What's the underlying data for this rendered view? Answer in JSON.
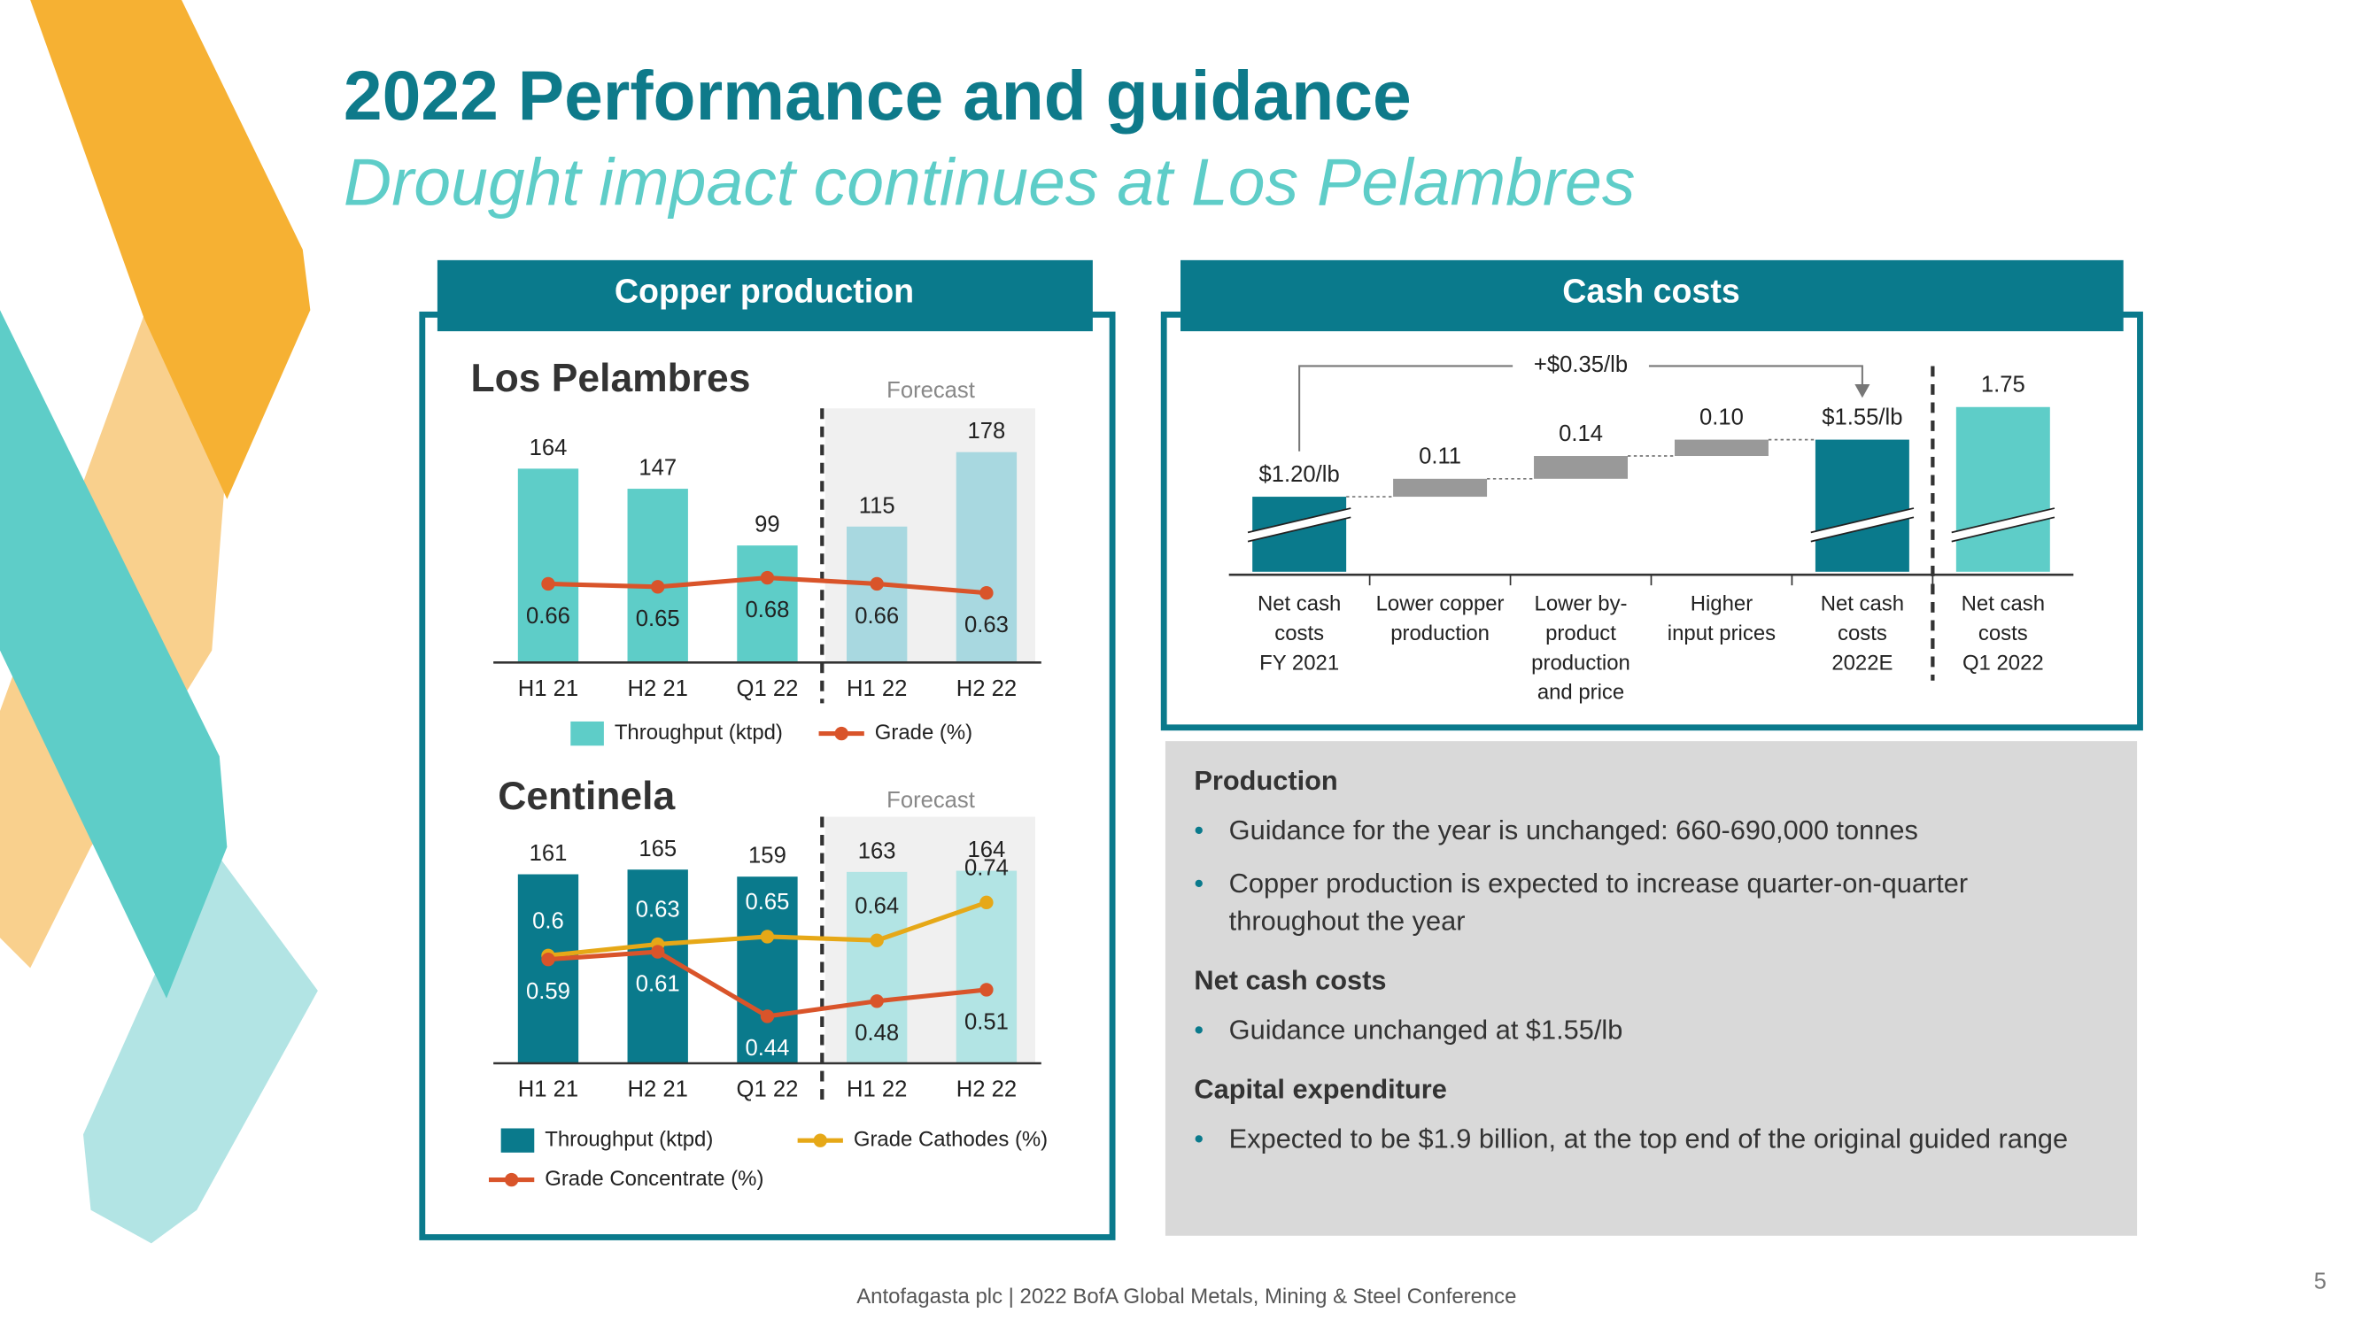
{
  "title": "2022 Performance and guidance",
  "subtitle": "Drought impact continues at Los Pelambres",
  "copper_panel": {
    "header": "Copper production"
  },
  "cash_panel": {
    "header": "Cash costs"
  },
  "chart_data": [
    {
      "type": "bar_line",
      "title": "Los Pelambres",
      "forecast_label": "Forecast",
      "categories": [
        "H1 21",
        "H2 21",
        "Q1 22",
        "H1 22",
        "H2 22"
      ],
      "ylim": [
        0,
        215
      ],
      "y2lim": [
        0.4,
        1.24
      ],
      "series": [
        {
          "name": "Throughput (ktpd)",
          "type": "bar",
          "colors": [
            "#5ecdc8",
            "#5ecdc8",
            "#5ecdc8",
            "#a8d8e0",
            "#a8d8e0"
          ],
          "values": [
            164,
            147,
            99,
            115,
            178
          ]
        },
        {
          "name": "Grade (%)",
          "type": "line",
          "axis": "y2",
          "color": "#d9542a",
          "values": [
            0.66,
            0.65,
            0.68,
            0.66,
            0.63
          ]
        }
      ]
    },
    {
      "type": "bar_line",
      "title": "Centinela",
      "forecast_label": "Forecast",
      "categories": [
        "H1 21",
        "H2 21",
        "Q1 22",
        "H1 22",
        "H2 22"
      ],
      "ylim": [
        0,
        210
      ],
      "y2lim": [
        0.316,
        0.966
      ],
      "series": [
        {
          "name": "Throughput (ktpd)",
          "type": "bar",
          "colors": [
            "#0a7a8c",
            "#0a7a8c",
            "#0a7a8c",
            "#b2e4e4",
            "#b2e4e4"
          ],
          "values": [
            161,
            165,
            159,
            163,
            164
          ]
        },
        {
          "name": "Grade Cathodes (%)",
          "type": "line",
          "axis": "y2",
          "color": "#e6a817",
          "values": [
            0.6,
            0.63,
            0.65,
            0.64,
            0.74
          ]
        },
        {
          "name": "Grade Concentrate (%)",
          "type": "line",
          "axis": "y2",
          "color": "#d9542a",
          "values": [
            0.59,
            0.61,
            0.44,
            0.48,
            0.51
          ]
        }
      ]
    },
    {
      "type": "waterfall",
      "annotation": "+$0.35/lb",
      "categories": [
        [
          "Net cash",
          "costs",
          "FY 2021"
        ],
        [
          "Lower copper",
          "production"
        ],
        [
          "Lower by-",
          "product",
          "production",
          "and price"
        ],
        [
          "Higher",
          "input prices"
        ],
        [
          "Net cash",
          "costs",
          "2022E"
        ],
        [
          "Net cash",
          "costs",
          "Q1 2022"
        ]
      ],
      "measures": [
        "absolute",
        "relative",
        "relative",
        "relative",
        "total",
        "absolute"
      ],
      "values": [
        1.2,
        0.11,
        0.14,
        0.1,
        1.55,
        1.75
      ],
      "value_labels": [
        "$1.20/lb",
        "0.11",
        "0.14",
        "0.10",
        "$1.55/lb",
        "1.75"
      ],
      "colors": [
        "#0a7a8c",
        "#999999",
        "#999999",
        "#999999",
        "#0a7a8c",
        "#5ecdc8"
      ],
      "ylim": [
        0.74,
        2.02
      ]
    }
  ],
  "notes": [
    {
      "heading": "Production",
      "bullets": [
        "Guidance for the year is unchanged: 660-690,000 tonnes",
        "Copper production is expected to increase quarter-on-quarter throughout the year"
      ]
    },
    {
      "heading": "Net cash costs",
      "bullets": [
        "Guidance unchanged at $1.55/lb"
      ]
    },
    {
      "heading": "Capital expenditure",
      "bullets": [
        "Expected to be $1.9 billion, at the top end of the original guided range"
      ]
    }
  ],
  "footer": "Antofagasta plc | 2022 BofA Global Metals, Mining & Steel Conference",
  "page_number": "5"
}
